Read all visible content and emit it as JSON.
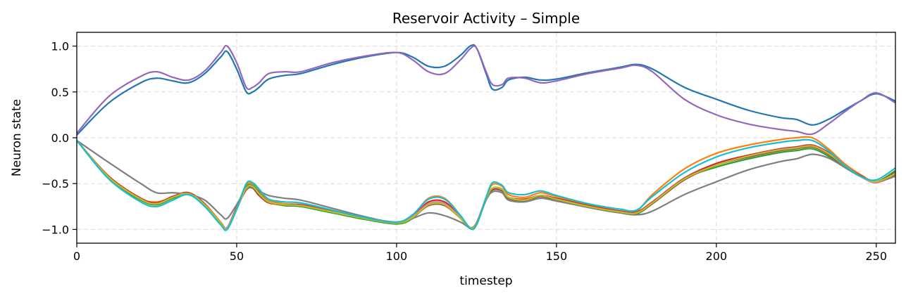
{
  "chart_data": {
    "type": "line",
    "title": "Reservoir Activity – Simple",
    "xlabel": "timestep",
    "ylabel": "Neuron state",
    "xlim": [
      0,
      256
    ],
    "ylim": [
      -1.15,
      1.15
    ],
    "grid": true,
    "x_ticks": [
      0,
      50,
      100,
      150,
      200,
      250
    ],
    "x_tick_labels": [
      "0",
      "50",
      "100",
      "150",
      "200",
      "250"
    ],
    "y_ticks": [
      -1.0,
      -0.5,
      0.0,
      0.5,
      1.0
    ],
    "y_tick_labels": [
      "−1.0",
      "−0.5",
      "0.0",
      "0.5",
      "1.0"
    ],
    "x": [
      0,
      10,
      20,
      25,
      30,
      35,
      40,
      45,
      47,
      50,
      53,
      55,
      57,
      60,
      65,
      70,
      80,
      90,
      100,
      105,
      110,
      115,
      120,
      123,
      125,
      128,
      130,
      133,
      135,
      140,
      145,
      150,
      160,
      170,
      175,
      180,
      190,
      200,
      210,
      220,
      225,
      230,
      235,
      240,
      245,
      250,
      256
    ],
    "series": [
      {
        "color": "#1f77b4",
        "values": [
          0.03,
          0.38,
          0.6,
          0.65,
          0.62,
          0.6,
          0.7,
          0.88,
          0.94,
          0.75,
          0.5,
          0.5,
          0.55,
          0.64,
          0.68,
          0.7,
          0.8,
          0.88,
          0.93,
          0.88,
          0.78,
          0.78,
          0.9,
          1.0,
          0.98,
          0.7,
          0.53,
          0.55,
          0.63,
          0.66,
          0.63,
          0.64,
          0.71,
          0.77,
          0.8,
          0.75,
          0.55,
          0.42,
          0.3,
          0.22,
          0.2,
          0.14,
          0.2,
          0.3,
          0.4,
          0.48,
          0.4
        ]
      },
      {
        "color": "#9467bd",
        "values": [
          0.05,
          0.45,
          0.67,
          0.72,
          0.66,
          0.63,
          0.73,
          0.93,
          1.0,
          0.82,
          0.55,
          0.55,
          0.6,
          0.7,
          0.72,
          0.72,
          0.82,
          0.89,
          0.93,
          0.85,
          0.72,
          0.7,
          0.85,
          0.97,
          0.98,
          0.72,
          0.58,
          0.58,
          0.65,
          0.65,
          0.6,
          0.62,
          0.7,
          0.76,
          0.79,
          0.72,
          0.42,
          0.25,
          0.15,
          0.09,
          0.07,
          0.04,
          0.15,
          0.28,
          0.4,
          0.49,
          0.38
        ]
      },
      {
        "color": "#ff7f0e",
        "values": [
          -0.03,
          -0.42,
          -0.66,
          -0.7,
          -0.65,
          -0.6,
          -0.72,
          -0.92,
          -0.98,
          -0.75,
          -0.52,
          -0.5,
          -0.58,
          -0.68,
          -0.72,
          -0.73,
          -0.8,
          -0.88,
          -0.93,
          -0.85,
          -0.66,
          -0.66,
          -0.85,
          -0.99,
          -0.95,
          -0.65,
          -0.51,
          -0.53,
          -0.62,
          -0.65,
          -0.6,
          -0.64,
          -0.73,
          -0.8,
          -0.8,
          -0.62,
          -0.34,
          -0.17,
          -0.08,
          -0.02,
          0.0,
          0.0,
          -0.12,
          -0.28,
          -0.4,
          -0.48,
          -0.39
        ]
      },
      {
        "color": "#2ca02c",
        "values": [
          -0.03,
          -0.44,
          -0.68,
          -0.73,
          -0.66,
          -0.62,
          -0.74,
          -0.94,
          -0.99,
          -0.78,
          -0.54,
          -0.52,
          -0.6,
          -0.7,
          -0.74,
          -0.75,
          -0.82,
          -0.89,
          -0.94,
          -0.88,
          -0.72,
          -0.72,
          -0.88,
          -0.99,
          -0.95,
          -0.67,
          -0.55,
          -0.56,
          -0.66,
          -0.69,
          -0.64,
          -0.68,
          -0.76,
          -0.82,
          -0.83,
          -0.72,
          -0.45,
          -0.32,
          -0.23,
          -0.16,
          -0.14,
          -0.12,
          -0.2,
          -0.32,
          -0.42,
          -0.48,
          -0.36
        ]
      },
      {
        "color": "#d62728",
        "values": [
          -0.03,
          -0.42,
          -0.66,
          -0.71,
          -0.64,
          -0.6,
          -0.72,
          -0.93,
          -0.98,
          -0.76,
          -0.57,
          -0.55,
          -0.63,
          -0.71,
          -0.73,
          -0.73,
          -0.8,
          -0.87,
          -0.92,
          -0.86,
          -0.7,
          -0.7,
          -0.86,
          -0.98,
          -0.93,
          -0.66,
          -0.56,
          -0.56,
          -0.65,
          -0.67,
          -0.63,
          -0.66,
          -0.74,
          -0.8,
          -0.81,
          -0.7,
          -0.44,
          -0.28,
          -0.19,
          -0.12,
          -0.1,
          -0.08,
          -0.16,
          -0.3,
          -0.41,
          -0.48,
          -0.38
        ]
      },
      {
        "color": "#8c564b",
        "values": [
          -0.03,
          -0.43,
          -0.67,
          -0.72,
          -0.65,
          -0.61,
          -0.73,
          -0.93,
          -0.98,
          -0.77,
          -0.56,
          -0.54,
          -0.62,
          -0.7,
          -0.73,
          -0.74,
          -0.81,
          -0.88,
          -0.93,
          -0.87,
          -0.74,
          -0.74,
          -0.88,
          -0.98,
          -0.93,
          -0.67,
          -0.57,
          -0.58,
          -0.66,
          -0.68,
          -0.64,
          -0.67,
          -0.75,
          -0.81,
          -0.82,
          -0.72,
          -0.46,
          -0.3,
          -0.21,
          -0.14,
          -0.12,
          -0.1,
          -0.18,
          -0.31,
          -0.42,
          -0.49,
          -0.4
        ]
      },
      {
        "color": "#e377c2",
        "values": [
          -0.03,
          -0.43,
          -0.67,
          -0.72,
          -0.65,
          -0.61,
          -0.73,
          -0.93,
          -0.98,
          -0.77,
          -0.55,
          -0.53,
          -0.61,
          -0.7,
          -0.73,
          -0.74,
          -0.81,
          -0.88,
          -0.93,
          -0.86,
          -0.72,
          -0.72,
          -0.87,
          -0.98,
          -0.94,
          -0.66,
          -0.55,
          -0.56,
          -0.65,
          -0.68,
          -0.63,
          -0.67,
          -0.75,
          -0.81,
          -0.82,
          -0.71,
          -0.45,
          -0.3,
          -0.2,
          -0.13,
          -0.11,
          -0.09,
          -0.17,
          -0.3,
          -0.42,
          -0.49,
          -0.39
        ]
      },
      {
        "color": "#7f7f7f",
        "values": [
          -0.03,
          -0.27,
          -0.5,
          -0.6,
          -0.6,
          -0.62,
          -0.68,
          -0.84,
          -0.88,
          -0.73,
          -0.56,
          -0.55,
          -0.58,
          -0.63,
          -0.66,
          -0.68,
          -0.77,
          -0.86,
          -0.93,
          -0.88,
          -0.82,
          -0.85,
          -0.92,
          -0.98,
          -0.93,
          -0.68,
          -0.59,
          -0.6,
          -0.68,
          -0.7,
          -0.66,
          -0.69,
          -0.76,
          -0.82,
          -0.84,
          -0.8,
          -0.62,
          -0.48,
          -0.35,
          -0.26,
          -0.23,
          -0.18,
          -0.22,
          -0.32,
          -0.42,
          -0.48,
          -0.42
        ]
      },
      {
        "color": "#bcbd22",
        "values": [
          -0.03,
          -0.43,
          -0.67,
          -0.72,
          -0.65,
          -0.61,
          -0.73,
          -0.93,
          -0.99,
          -0.77,
          -0.55,
          -0.53,
          -0.61,
          -0.7,
          -0.73,
          -0.74,
          -0.81,
          -0.88,
          -0.93,
          -0.87,
          -0.73,
          -0.73,
          -0.88,
          -0.98,
          -0.94,
          -0.66,
          -0.55,
          -0.56,
          -0.65,
          -0.68,
          -0.63,
          -0.67,
          -0.75,
          -0.81,
          -0.82,
          -0.71,
          -0.45,
          -0.3,
          -0.2,
          -0.13,
          -0.11,
          -0.09,
          -0.17,
          -0.3,
          -0.42,
          -0.48,
          -0.39
        ]
      },
      {
        "color": "#17becf",
        "values": [
          -0.03,
          -0.45,
          -0.7,
          -0.75,
          -0.68,
          -0.62,
          -0.75,
          -0.95,
          -1.0,
          -0.78,
          -0.5,
          -0.49,
          -0.56,
          -0.67,
          -0.7,
          -0.71,
          -0.79,
          -0.87,
          -0.92,
          -0.84,
          -0.67,
          -0.67,
          -0.85,
          -0.99,
          -0.95,
          -0.65,
          -0.49,
          -0.52,
          -0.6,
          -0.62,
          -0.58,
          -0.63,
          -0.72,
          -0.78,
          -0.79,
          -0.64,
          -0.38,
          -0.21,
          -0.11,
          -0.05,
          -0.03,
          -0.03,
          -0.14,
          -0.3,
          -0.42,
          -0.46,
          -0.33
        ]
      }
    ]
  }
}
